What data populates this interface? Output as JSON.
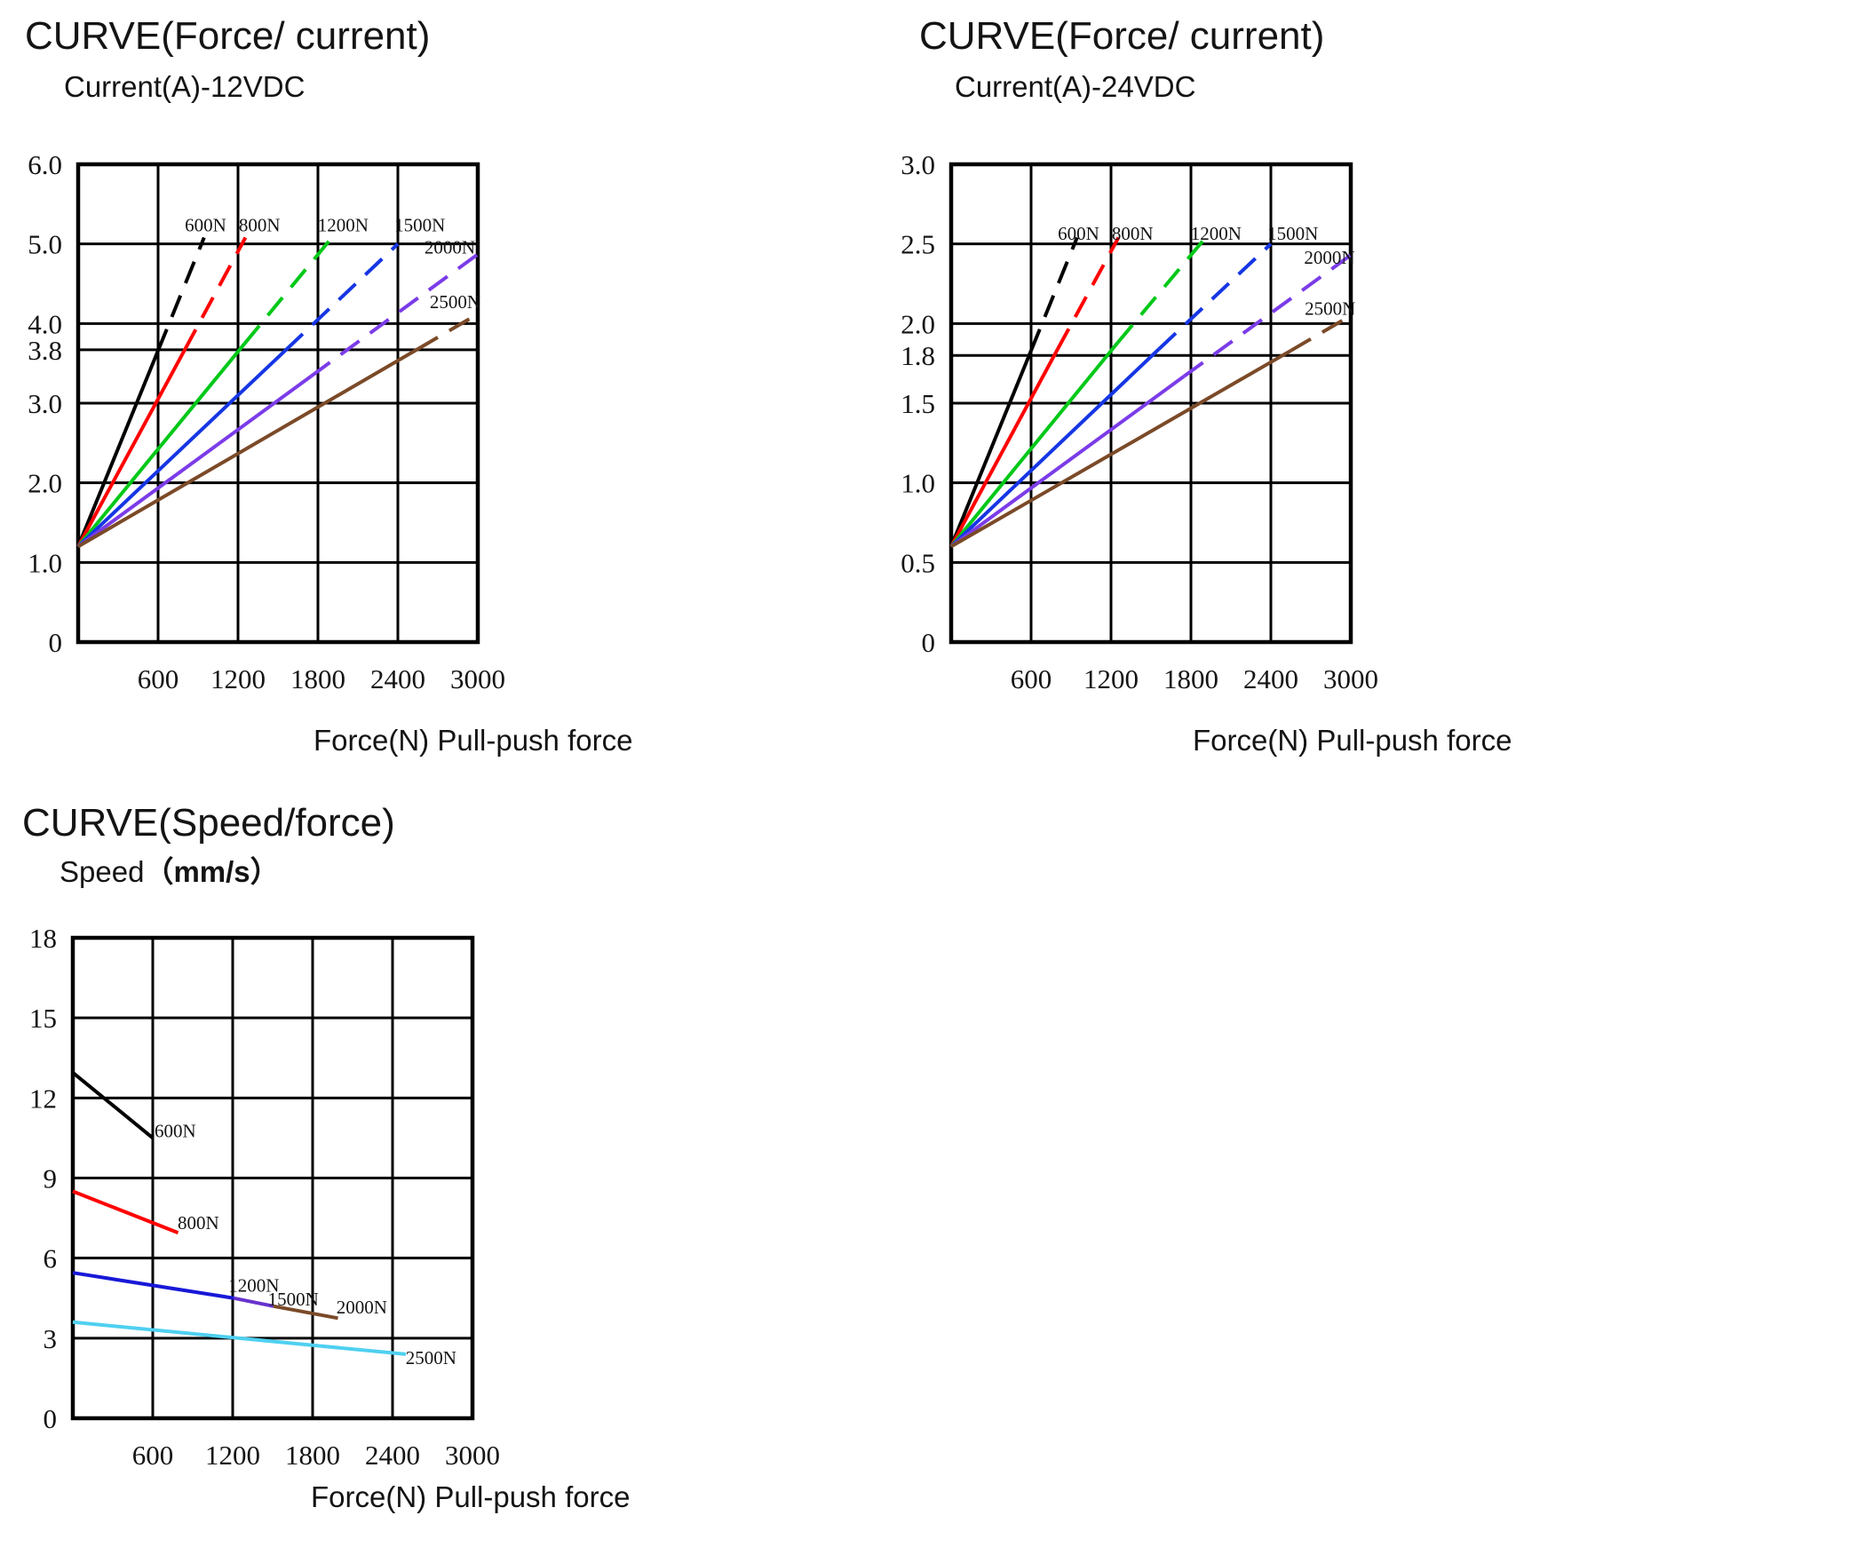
{
  "page": {
    "background": "#ffffff"
  },
  "chart_data": [
    {
      "type": "line",
      "title": "CURVE(Force/ current)",
      "subtitle": "Current(A)-12VDC",
      "xlabel": "Force(N) Pull-push force",
      "xlim": [
        0,
        3000
      ],
      "ylim": [
        0,
        6
      ],
      "grid": true,
      "x_ticks": [
        600,
        1200,
        1800,
        2400,
        3000
      ],
      "y_ticks": [
        {
          "label": "6.0",
          "v": 6.0
        },
        {
          "label": "5.0",
          "v": 5.0
        },
        {
          "label": "4.0",
          "v": 4.0
        },
        {
          "label": "3.8",
          "v": 3.8,
          "pos": 3.67
        },
        {
          "label": "3.0",
          "v": 3.0
        },
        {
          "label": "2.0",
          "v": 2.0
        },
        {
          "label": "1.0",
          "v": 1.0
        },
        {
          "label": "0",
          "v": 0.0
        }
      ],
      "series": [
        {
          "name": "600N",
          "color": "#000000",
          "solid": [
            [
              0,
              1.2
            ],
            [
              600,
              3.66
            ]
          ],
          "dashed": [
            [
              600,
              3.66
            ],
            [
              945,
              5.08
            ]
          ],
          "label_pos": [
            956,
            5.25
          ]
        },
        {
          "name": "800N",
          "color": "#ff0000",
          "solid": [
            [
              0,
              1.2
            ],
            [
              800,
              3.67
            ]
          ],
          "dashed": [
            [
              800,
              3.67
            ],
            [
              1256,
              5.08
            ]
          ],
          "label_pos": [
            1361,
            5.25
          ]
        },
        {
          "name": "1200N",
          "color": "#00c818",
          "solid": [
            [
              0,
              1.2
            ],
            [
              1250,
              3.75
            ]
          ],
          "dashed": [
            [
              1250,
              3.75
            ],
            [
              1890,
              5.05
            ]
          ],
          "label_pos": [
            1989,
            5.25
          ]
        },
        {
          "name": "1500N",
          "color": "#1536e4",
          "solid": [
            [
              0,
              1.2
            ],
            [
              1560,
              3.67
            ]
          ],
          "dashed": [
            [
              1560,
              3.67
            ],
            [
              2400,
              5.0
            ]
          ],
          "label_pos": [
            2565,
            5.25
          ]
        },
        {
          "name": "2000N",
          "color": "#7b3ce8",
          "solid": [
            [
              0,
              1.2
            ],
            [
              1750,
              3.34
            ]
          ],
          "dashed": [
            [
              1750,
              3.34
            ],
            [
              3000,
              4.87
            ]
          ],
          "label_pos": [
            2790,
            4.97
          ]
        },
        {
          "name": "2500N",
          "color": "#7b4a28",
          "solid": [
            [
              0,
              1.2
            ],
            [
              2550,
              3.68
            ]
          ],
          "dashed": [
            [
              2550,
              3.68
            ],
            [
              3000,
              4.12
            ]
          ],
          "label_pos": [
            2830,
            4.28
          ]
        }
      ]
    },
    {
      "type": "line",
      "title": "CURVE(Force/ current)",
      "subtitle": "Current(A)-24VDC",
      "xlabel": "Force(N) Pull-push force",
      "xlim": [
        0,
        3000
      ],
      "ylim": [
        0,
        3
      ],
      "grid": true,
      "x_ticks": [
        600,
        1200,
        1800,
        2400,
        3000
      ],
      "y_ticks": [
        {
          "label": "3.0",
          "v": 3.0
        },
        {
          "label": "2.5",
          "v": 2.5
        },
        {
          "label": "2.0",
          "v": 2.0
        },
        {
          "label": "1.8",
          "v": 1.8
        },
        {
          "label": "1.5",
          "v": 1.5
        },
        {
          "label": "1.0",
          "v": 1.0
        },
        {
          "label": "0.5",
          "v": 0.5
        },
        {
          "label": "0",
          "v": 0.0
        }
      ],
      "series": [
        {
          "name": "600N",
          "color": "#000000",
          "solid": [
            [
              0,
              0.6
            ],
            [
              600,
              1.83
            ]
          ],
          "dashed": [
            [
              600,
              1.83
            ],
            [
              945,
              2.54
            ]
          ],
          "label_pos": [
            956,
            2.57
          ]
        },
        {
          "name": "800N",
          "color": "#ff0000",
          "solid": [
            [
              0,
              0.6
            ],
            [
              800,
              1.84
            ]
          ],
          "dashed": [
            [
              800,
              1.84
            ],
            [
              1256,
              2.54
            ]
          ],
          "label_pos": [
            1361,
            2.57
          ]
        },
        {
          "name": "1200N",
          "color": "#00c818",
          "solid": [
            [
              0,
              0.6
            ],
            [
              1250,
              1.88
            ]
          ],
          "dashed": [
            [
              1250,
              1.88
            ],
            [
              1890,
              2.52
            ]
          ],
          "label_pos": [
            1989,
            2.57
          ]
        },
        {
          "name": "1500N",
          "color": "#1536e4",
          "solid": [
            [
              0,
              0.6
            ],
            [
              1560,
              1.84
            ]
          ],
          "dashed": [
            [
              1560,
              1.84
            ],
            [
              2400,
              2.5
            ]
          ],
          "label_pos": [
            2565,
            2.57
          ]
        },
        {
          "name": "2000N",
          "color": "#7b3ce8",
          "solid": [
            [
              0,
              0.6
            ],
            [
              1750,
              1.67
            ]
          ],
          "dashed": [
            [
              1750,
              1.67
            ],
            [
              3000,
              2.43
            ]
          ],
          "label_pos": [
            2840,
            2.42
          ]
        },
        {
          "name": "2500N",
          "color": "#7b4a28",
          "solid": [
            [
              0,
              0.6
            ],
            [
              2550,
              1.83
            ]
          ],
          "dashed": [
            [
              2550,
              1.83
            ],
            [
              3000,
              2.05
            ]
          ],
          "label_pos": [
            2845,
            2.1
          ]
        }
      ]
    },
    {
      "type": "line",
      "title": "CURVE(Speed/force)",
      "subtitle": "Speed",
      "subtitle_unit": "（mm/s）",
      "xlabel": "Force(N) Pull-push force",
      "xlim": [
        0,
        3000
      ],
      "ylim": [
        0,
        18
      ],
      "grid": true,
      "x_ticks": [
        600,
        1200,
        1800,
        2400,
        3000
      ],
      "y_ticks": [
        {
          "label": "18",
          "v": 18
        },
        {
          "label": "15",
          "v": 15
        },
        {
          "label": "12",
          "v": 12
        },
        {
          "label": "9",
          "v": 9
        },
        {
          "label": "6",
          "v": 6
        },
        {
          "label": "3",
          "v": 3
        },
        {
          "label": "0",
          "v": 0
        }
      ],
      "series": [
        {
          "name": "600N",
          "color": "#000000",
          "solid": [
            [
              0,
              12.95
            ],
            [
              600,
              10.5
            ]
          ],
          "dashed": null,
          "label_pos": [
            769,
            10.8
          ]
        },
        {
          "name": "800N",
          "color": "#ff0000",
          "solid": [
            [
              0,
              8.5
            ],
            [
              790,
              6.95
            ]
          ],
          "dashed": null,
          "label_pos": [
            942,
            7.35
          ]
        },
        {
          "name": "1200N",
          "color": "#1818d8",
          "solid": [
            [
              0,
              5.45
            ],
            [
              1210,
              4.5
            ]
          ],
          "dashed": null,
          "label_pos": [
            1359,
            5.0
          ]
        },
        {
          "name": "1500N",
          "color": "#6633cc",
          "solid": [
            [
              1210,
              4.5
            ],
            [
              1505,
              4.2
            ]
          ],
          "dashed": null,
          "label_pos": [
            1655,
            4.5
          ]
        },
        {
          "name": "2000N",
          "color": "#7b4a28",
          "solid": [
            [
              1505,
              4.2
            ],
            [
              1990,
              3.75
            ]
          ],
          "dashed": null,
          "label_pos": [
            2169,
            4.2
          ]
        },
        {
          "name": "2500N",
          "color": "#4fd0f0",
          "solid": [
            [
              0,
              3.6
            ],
            [
              2500,
              2.4
            ]
          ],
          "dashed": null,
          "label_pos": [
            2689,
            2.3
          ]
        }
      ]
    }
  ]
}
